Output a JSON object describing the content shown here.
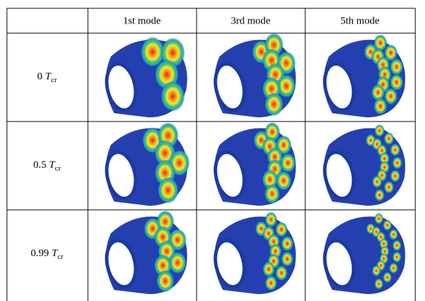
{
  "header": {
    "columns": [
      "1st mode",
      "3rd mode",
      "5th mode"
    ]
  },
  "rows": [
    {
      "coefficient": "0",
      "symbol": "T",
      "subscript": "cr"
    },
    {
      "coefficient": "0.5",
      "symbol": "T",
      "subscript": "cr"
    },
    {
      "coefficient": "0.99",
      "symbol": "T",
      "subscript": "cr"
    }
  ]
}
